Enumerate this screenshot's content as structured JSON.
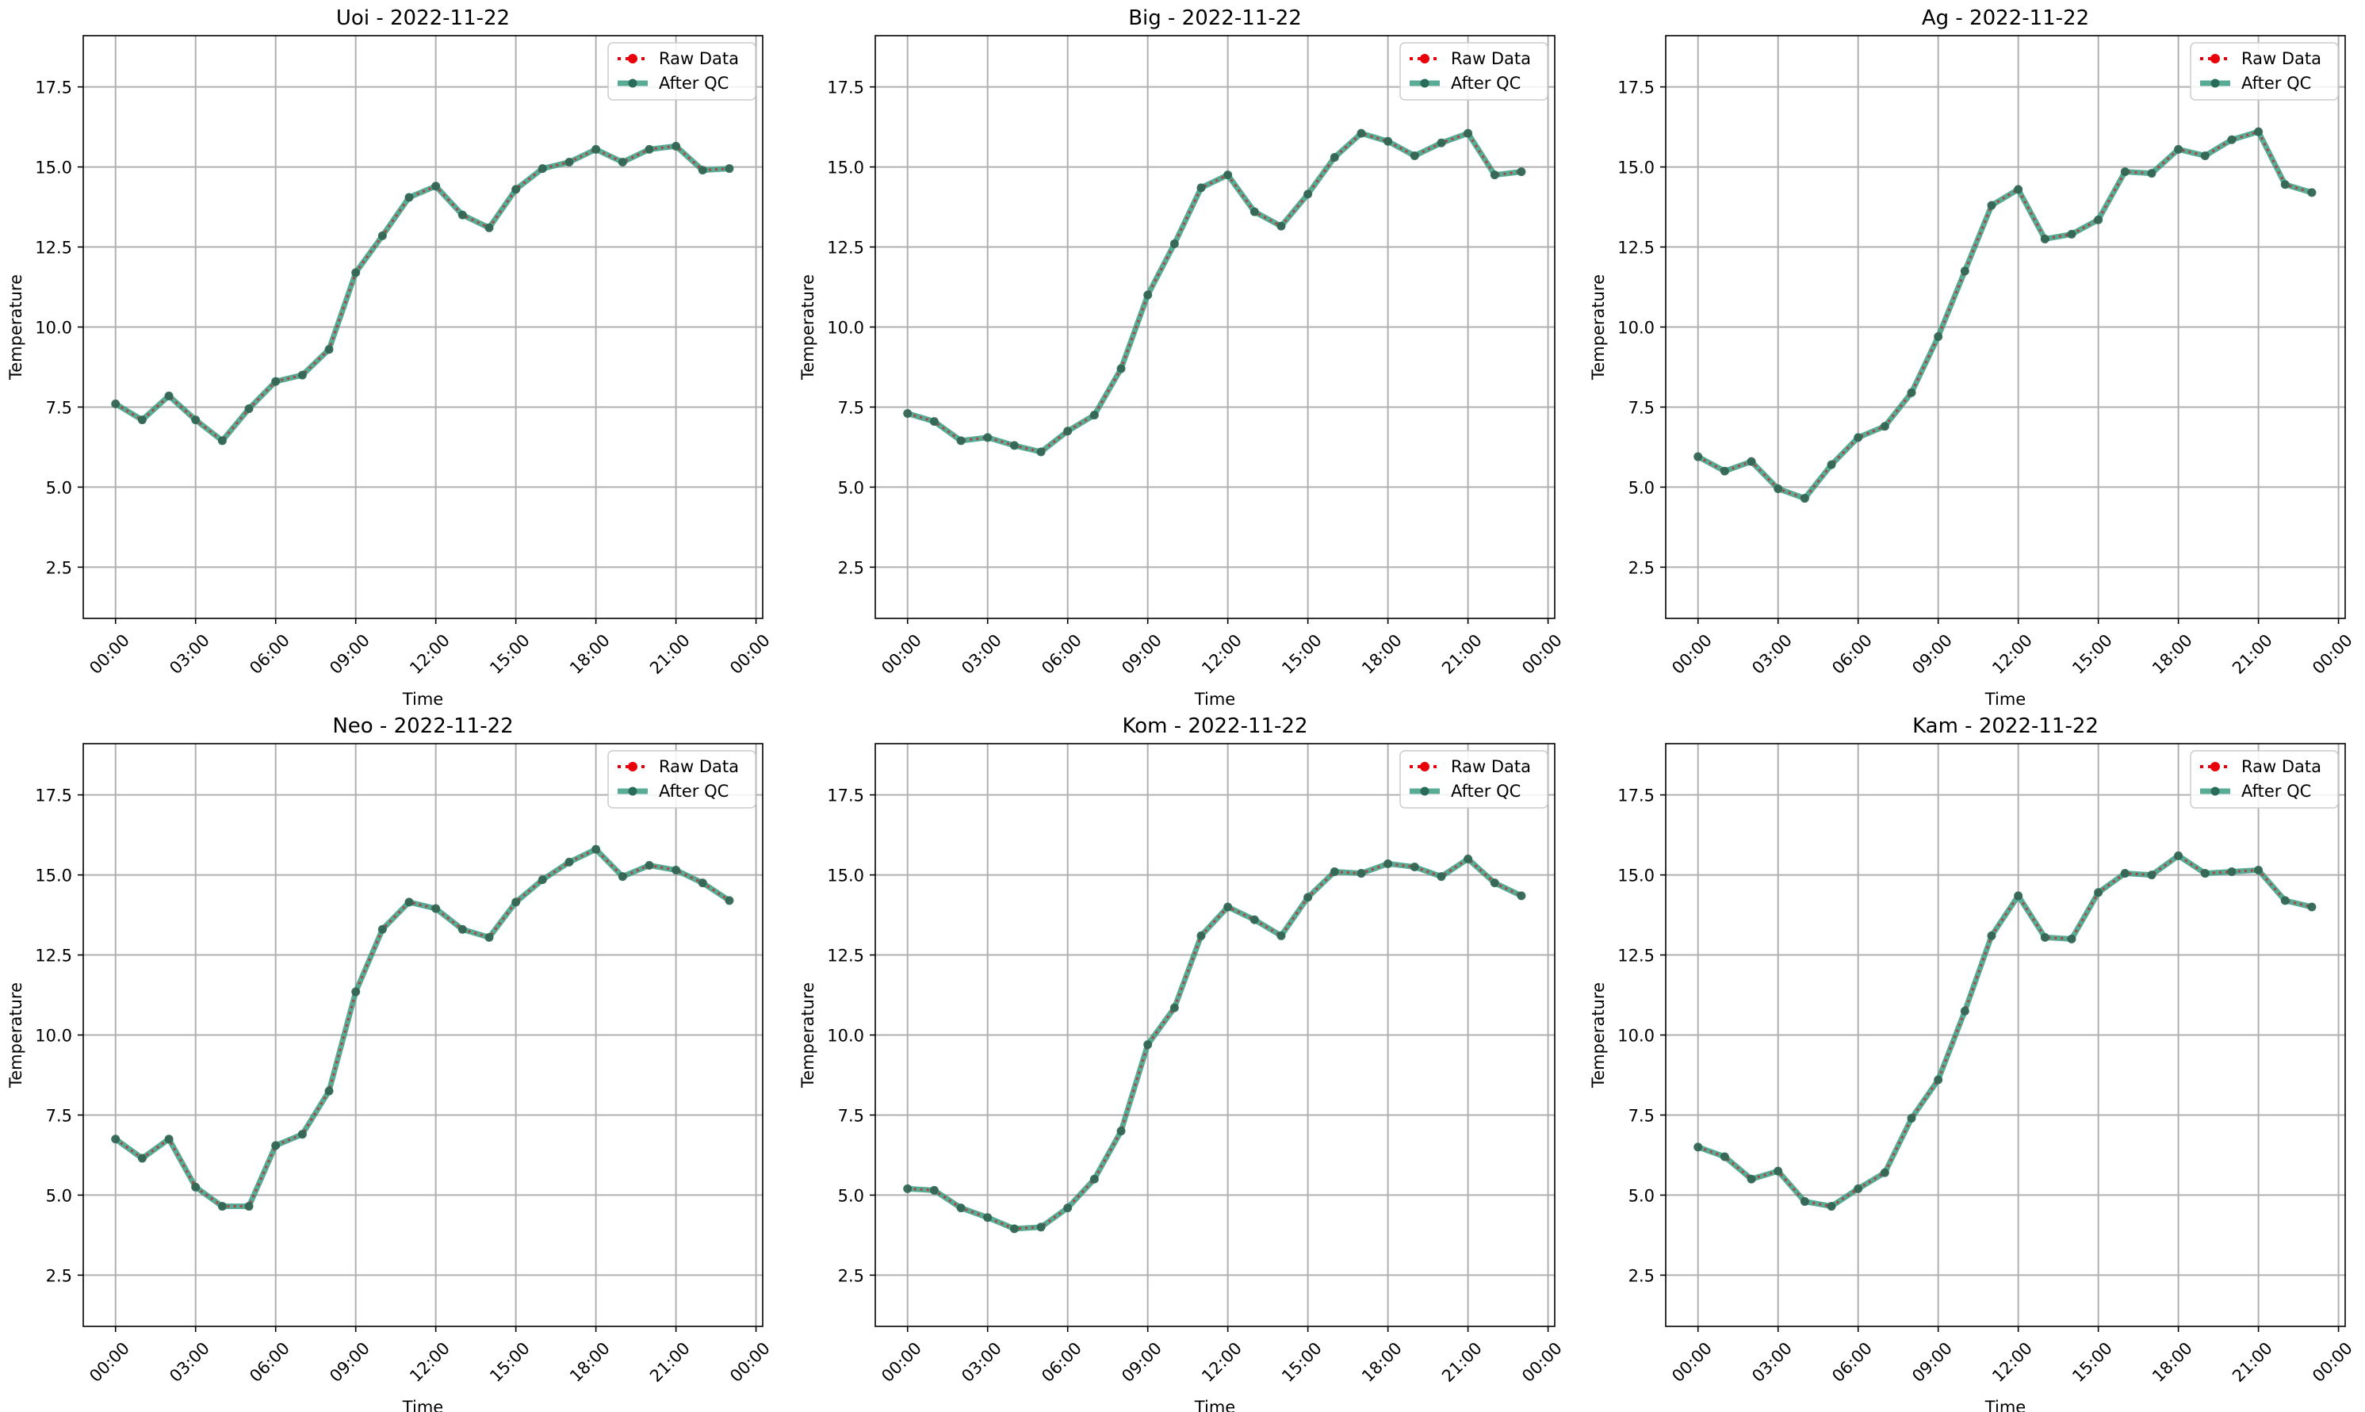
{
  "chart_data": [
    {
      "type": "line",
      "title": "Uoi - 2022-11-22",
      "xlabel": "Time",
      "ylabel": "Temperature",
      "x_hours": [
        0,
        1,
        2,
        3,
        4,
        5,
        6,
        7,
        8,
        9,
        10,
        11,
        12,
        13,
        14,
        15,
        16,
        17,
        18,
        19,
        20,
        21,
        22,
        23
      ],
      "series": [
        {
          "name": "Raw Data",
          "color": "#e8000b",
          "values": [
            7.6,
            7.1,
            7.85,
            7.1,
            6.45,
            7.45,
            8.3,
            8.5,
            9.3,
            11.7,
            12.85,
            14.05,
            14.4,
            13.5,
            13.1,
            14.3,
            14.95,
            15.15,
            15.55,
            15.15,
            15.55,
            15.65,
            14.9,
            14.95
          ]
        },
        {
          "name": "After QC",
          "color": "#3b9c82",
          "values": [
            7.6,
            7.1,
            7.85,
            7.1,
            6.45,
            7.45,
            8.3,
            8.5,
            9.3,
            11.7,
            12.85,
            14.05,
            14.4,
            13.5,
            13.1,
            14.3,
            14.95,
            15.15,
            15.55,
            15.15,
            15.55,
            15.65,
            14.9,
            14.95
          ]
        }
      ],
      "ylim": [
        0.9,
        19.1
      ],
      "yticks": [
        "2.5",
        "5.0",
        "7.5",
        "10.0",
        "12.5",
        "15.0",
        "17.5"
      ],
      "xticks": [
        "00:00",
        "03:00",
        "06:00",
        "09:00",
        "12:00",
        "15:00",
        "18:00",
        "21:00",
        "00:00"
      ],
      "grid": true,
      "legend": "upper-right"
    },
    {
      "type": "line",
      "title": "Big - 2022-11-22",
      "xlabel": "Time",
      "ylabel": "Temperature",
      "x_hours": [
        0,
        1,
        2,
        3,
        4,
        5,
        6,
        7,
        8,
        9,
        10,
        11,
        12,
        13,
        14,
        15,
        16,
        17,
        18,
        19,
        20,
        21,
        22,
        23
      ],
      "series": [
        {
          "name": "Raw Data",
          "color": "#e8000b",
          "values": [
            7.3,
            7.05,
            6.45,
            6.55,
            6.3,
            6.1,
            6.75,
            7.25,
            8.7,
            11.0,
            12.6,
            14.35,
            14.75,
            13.6,
            13.15,
            14.15,
            15.3,
            16.05,
            15.8,
            15.35,
            15.75,
            16.05,
            14.75,
            14.85
          ]
        },
        {
          "name": "After QC",
          "color": "#3b9c82",
          "values": [
            7.3,
            7.05,
            6.45,
            6.55,
            6.3,
            6.1,
            6.75,
            7.25,
            8.7,
            11.0,
            12.6,
            14.35,
            14.75,
            13.6,
            13.15,
            14.15,
            15.3,
            16.05,
            15.8,
            15.35,
            15.75,
            16.05,
            14.75,
            14.85
          ]
        }
      ],
      "ylim": [
        0.9,
        19.1
      ],
      "yticks": [
        "2.5",
        "5.0",
        "7.5",
        "10.0",
        "12.5",
        "15.0",
        "17.5"
      ],
      "xticks": [
        "00:00",
        "03:00",
        "06:00",
        "09:00",
        "12:00",
        "15:00",
        "18:00",
        "21:00",
        "00:00"
      ],
      "grid": true,
      "legend": "upper-right"
    },
    {
      "type": "line",
      "title": "Ag - 2022-11-22",
      "xlabel": "Time",
      "ylabel": "Temperature",
      "x_hours": [
        0,
        1,
        2,
        3,
        4,
        5,
        6,
        7,
        8,
        9,
        10,
        11,
        12,
        13,
        14,
        15,
        16,
        17,
        18,
        19,
        20,
        21,
        22,
        23
      ],
      "series": [
        {
          "name": "Raw Data",
          "color": "#e8000b",
          "values": [
            5.95,
            5.5,
            5.8,
            4.95,
            4.65,
            5.7,
            6.55,
            6.9,
            7.95,
            9.7,
            11.75,
            13.8,
            14.3,
            12.75,
            12.9,
            13.35,
            14.85,
            14.8,
            15.55,
            15.35,
            15.85,
            16.1,
            14.45,
            14.2
          ]
        },
        {
          "name": "After QC",
          "color": "#3b9c82",
          "values": [
            5.95,
            5.5,
            5.8,
            4.95,
            4.65,
            5.7,
            6.55,
            6.9,
            7.95,
            9.7,
            11.75,
            13.8,
            14.3,
            12.75,
            12.9,
            13.35,
            14.85,
            14.8,
            15.55,
            15.35,
            15.85,
            16.1,
            14.45,
            14.2
          ]
        }
      ],
      "ylim": [
        0.9,
        19.1
      ],
      "yticks": [
        "2.5",
        "5.0",
        "7.5",
        "10.0",
        "12.5",
        "15.0",
        "17.5"
      ],
      "xticks": [
        "00:00",
        "03:00",
        "06:00",
        "09:00",
        "12:00",
        "15:00",
        "18:00",
        "21:00",
        "00:00"
      ],
      "grid": true,
      "legend": "upper-right"
    },
    {
      "type": "line",
      "title": "Neo - 2022-11-22",
      "xlabel": "Time",
      "ylabel": "Temperature",
      "x_hours": [
        0,
        1,
        2,
        3,
        4,
        5,
        6,
        7,
        8,
        9,
        10,
        11,
        12,
        13,
        14,
        15,
        16,
        17,
        18,
        19,
        20,
        21,
        22,
        23
      ],
      "series": [
        {
          "name": "Raw Data",
          "color": "#e8000b",
          "values": [
            6.75,
            6.15,
            6.75,
            5.25,
            4.65,
            4.65,
            6.55,
            6.9,
            8.25,
            11.35,
            13.3,
            14.15,
            13.95,
            13.3,
            13.05,
            14.15,
            14.85,
            15.4,
            15.8,
            14.95,
            15.3,
            15.15,
            14.75,
            14.2
          ]
        },
        {
          "name": "After QC",
          "color": "#3b9c82",
          "values": [
            6.75,
            6.15,
            6.75,
            5.25,
            4.65,
            4.65,
            6.55,
            6.9,
            8.25,
            11.35,
            13.3,
            14.15,
            13.95,
            13.3,
            13.05,
            14.15,
            14.85,
            15.4,
            15.8,
            14.95,
            15.3,
            15.15,
            14.75,
            14.2
          ]
        }
      ],
      "ylim": [
        0.9,
        19.1
      ],
      "yticks": [
        "2.5",
        "5.0",
        "7.5",
        "10.0",
        "12.5",
        "15.0",
        "17.5"
      ],
      "xticks": [
        "00:00",
        "03:00",
        "06:00",
        "09:00",
        "12:00",
        "15:00",
        "18:00",
        "21:00",
        "00:00"
      ],
      "grid": true,
      "legend": "upper-right"
    },
    {
      "type": "line",
      "title": "Kom - 2022-11-22",
      "xlabel": "Time",
      "ylabel": "Temperature",
      "x_hours": [
        0,
        1,
        2,
        3,
        4,
        5,
        6,
        7,
        8,
        9,
        10,
        11,
        12,
        13,
        14,
        15,
        16,
        17,
        18,
        19,
        20,
        21,
        22,
        23
      ],
      "series": [
        {
          "name": "Raw Data",
          "color": "#e8000b",
          "values": [
            5.2,
            5.15,
            4.6,
            4.3,
            3.95,
            4.0,
            4.6,
            5.5,
            7.0,
            9.7,
            10.85,
            13.1,
            14.0,
            13.6,
            13.1,
            14.3,
            15.1,
            15.05,
            15.35,
            15.25,
            14.95,
            15.5,
            14.75,
            14.35
          ]
        },
        {
          "name": "After QC",
          "color": "#3b9c82",
          "values": [
            5.2,
            5.15,
            4.6,
            4.3,
            3.95,
            4.0,
            4.6,
            5.5,
            7.0,
            9.7,
            10.85,
            13.1,
            14.0,
            13.6,
            13.1,
            14.3,
            15.1,
            15.05,
            15.35,
            15.25,
            14.95,
            15.5,
            14.75,
            14.35
          ]
        }
      ],
      "ylim": [
        0.9,
        19.1
      ],
      "yticks": [
        "2.5",
        "5.0",
        "7.5",
        "10.0",
        "12.5",
        "15.0",
        "17.5"
      ],
      "xticks": [
        "00:00",
        "03:00",
        "06:00",
        "09:00",
        "12:00",
        "15:00",
        "18:00",
        "21:00",
        "00:00"
      ],
      "grid": true,
      "legend": "upper-right"
    },
    {
      "type": "line",
      "title": "Kam - 2022-11-22",
      "xlabel": "Time",
      "ylabel": "Temperature",
      "x_hours": [
        0,
        1,
        2,
        3,
        4,
        5,
        6,
        7,
        8,
        9,
        10,
        11,
        12,
        13,
        14,
        15,
        16,
        17,
        18,
        19,
        20,
        21,
        22,
        23
      ],
      "series": [
        {
          "name": "Raw Data",
          "color": "#e8000b",
          "values": [
            6.5,
            6.2,
            5.5,
            5.75,
            4.8,
            4.65,
            5.2,
            5.7,
            7.4,
            8.6,
            10.75,
            13.1,
            14.35,
            13.05,
            13.0,
            14.45,
            15.05,
            15.0,
            15.6,
            15.05,
            15.1,
            15.15,
            14.2,
            14.0
          ]
        },
        {
          "name": "After QC",
          "color": "#3b9c82",
          "values": [
            6.5,
            6.2,
            5.5,
            5.75,
            4.8,
            4.65,
            5.2,
            5.7,
            7.4,
            8.6,
            10.75,
            13.1,
            14.35,
            13.05,
            13.0,
            14.45,
            15.05,
            15.0,
            15.6,
            15.05,
            15.1,
            15.15,
            14.2,
            14.0
          ]
        }
      ],
      "ylim": [
        0.9,
        19.1
      ],
      "yticks": [
        "2.5",
        "5.0",
        "7.5",
        "10.0",
        "12.5",
        "15.0",
        "17.5"
      ],
      "xticks": [
        "00:00",
        "03:00",
        "06:00",
        "09:00",
        "12:00",
        "15:00",
        "18:00",
        "21:00",
        "00:00"
      ],
      "grid": true,
      "legend": "upper-right"
    }
  ]
}
